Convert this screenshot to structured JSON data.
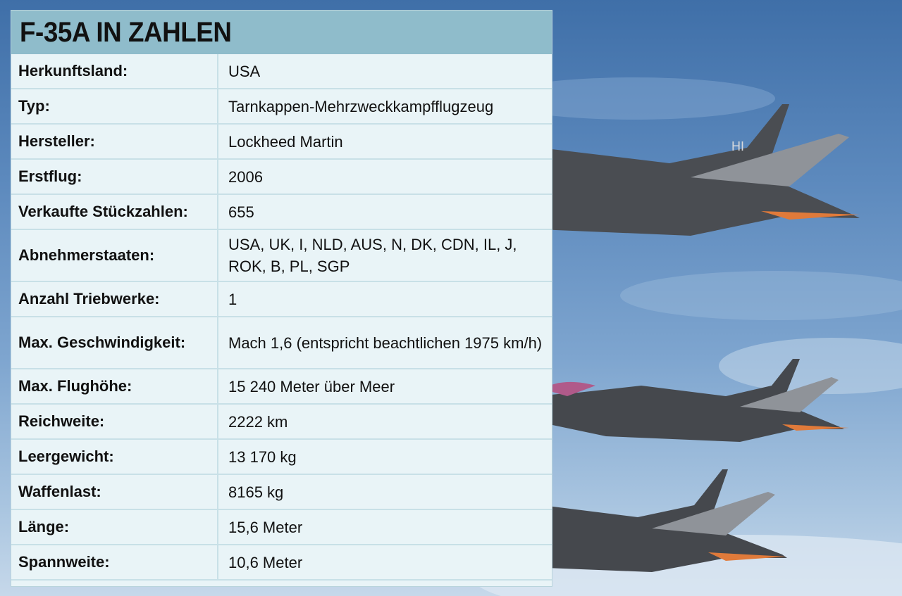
{
  "title": "F-35A IN ZAHLEN",
  "rows": [
    {
      "label": "Herkunftsland:",
      "value": "USA"
    },
    {
      "label": "Typ:",
      "value": "Tarnkappen-Mehrzweckkampfflugzeug"
    },
    {
      "label": "Hersteller:",
      "value": "Lockheed Martin"
    },
    {
      "label": "Erstflug:",
      "value": "2006"
    },
    {
      "label": "Verkaufte Stückzahlen:",
      "value": "655"
    },
    {
      "label": "Abnehmerstaaten:",
      "value": "USA, UK, I, NLD, AUS, N, DK, CDN, IL, J, ROK, B, PL, SGP"
    },
    {
      "label": "Anzahl Triebwerke:",
      "value": "1"
    },
    {
      "label": "Max. Geschwindigkeit:",
      "value": "Mach 1,6 (entspricht beachtlichen 1975 km/h)"
    },
    {
      "label": "Max. Flughöhe:",
      "value": "15 240 Meter über Meer"
    },
    {
      "label": "Reichweite:",
      "value": "2222 km"
    },
    {
      "label": "Leergewicht:",
      "value": "13 170 kg"
    },
    {
      "label": "Waffenlast:",
      "value": "8165 kg"
    },
    {
      "label": "Länge:",
      "value": "15,6 Meter"
    },
    {
      "label": "Spannweite:",
      "value": "10,6 Meter"
    }
  ],
  "tail_code": "HI",
  "colors": {
    "title_bar": "#8fbccb",
    "card_bg": "#e9f4f7",
    "divider": "#c8e0e7",
    "jet_body": "#4a4d52"
  }
}
